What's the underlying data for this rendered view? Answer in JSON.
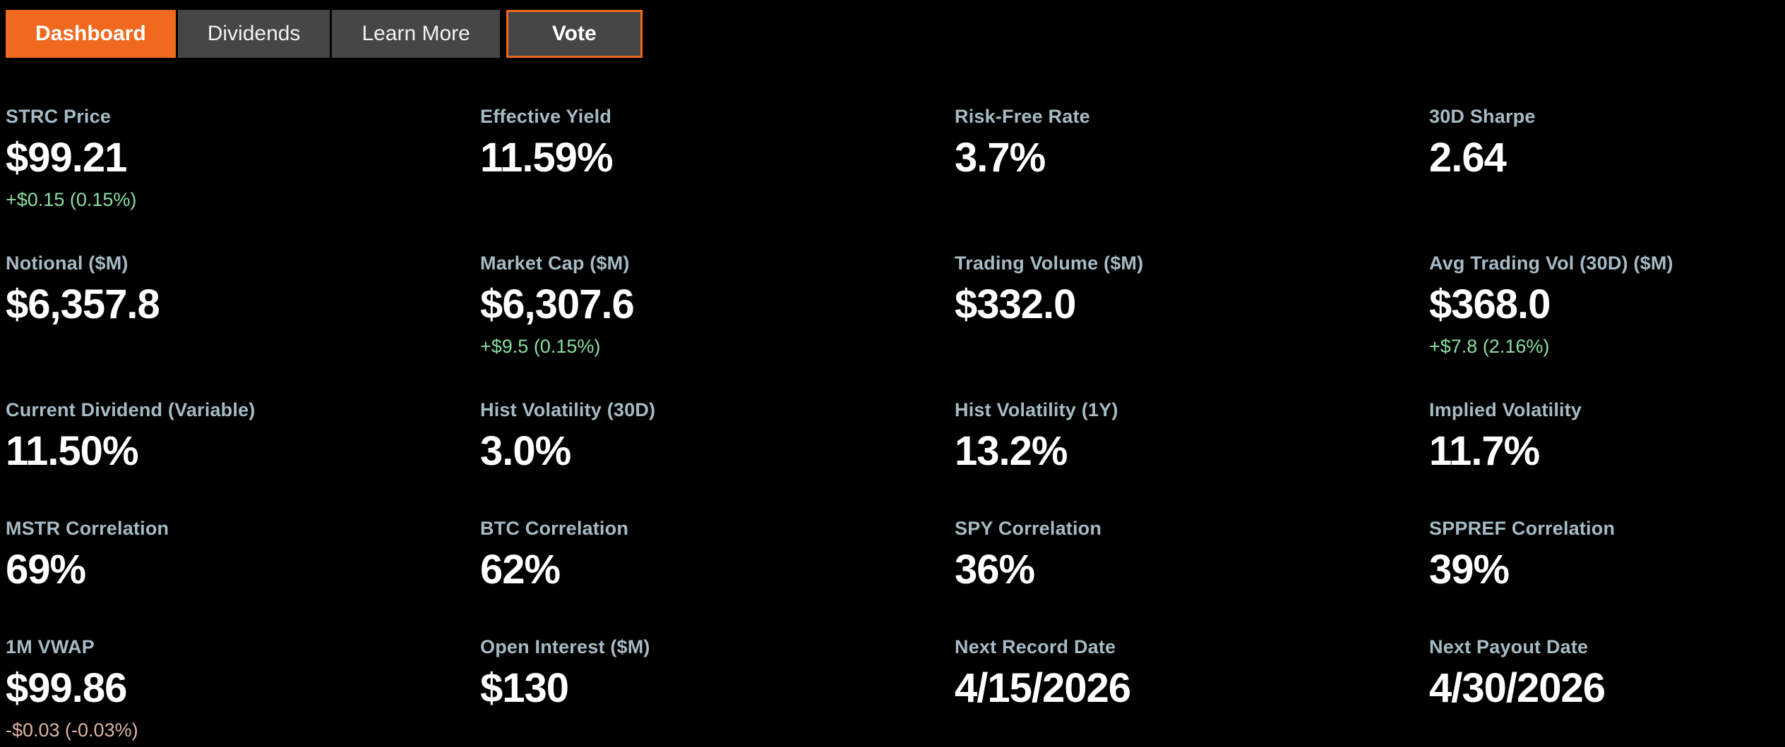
{
  "colors": {
    "accent_orange": "#f0691e",
    "button_gray": "#464646",
    "label_gray_blue": "#a6bbc5",
    "value_white": "#ffffff",
    "positive_green": "#8adfa2",
    "negative_salmon": "#dfb5a5",
    "background": "#000000"
  },
  "nav": {
    "tabs": [
      {
        "label": "Dashboard",
        "active": true,
        "outlined": false
      },
      {
        "label": "Dividends",
        "active": false,
        "outlined": false
      },
      {
        "label": "Learn More",
        "active": false,
        "outlined": false
      },
      {
        "label": "Vote",
        "active": false,
        "outlined": true
      }
    ]
  },
  "metrics": [
    {
      "label": "STRC Price",
      "value": "$99.21",
      "change": "+$0.15 (0.15%)",
      "direction": "up"
    },
    {
      "label": "Effective Yield",
      "value": "11.59%",
      "change": null,
      "direction": null
    },
    {
      "label": "Risk-Free Rate",
      "value": "3.7%",
      "change": null,
      "direction": null
    },
    {
      "label": "30D Sharpe",
      "value": "2.64",
      "change": null,
      "direction": null
    },
    {
      "label": "Notional ($M)",
      "value": "$6,357.8",
      "change": null,
      "direction": null
    },
    {
      "label": "Market Cap ($M)",
      "value": "$6,307.6",
      "change": "+$9.5 (0.15%)",
      "direction": "up"
    },
    {
      "label": "Trading Volume ($M)",
      "value": "$332.0",
      "change": null,
      "direction": null
    },
    {
      "label": "Avg Trading Vol (30D) ($M)",
      "value": "$368.0",
      "change": "+$7.8 (2.16%)",
      "direction": "up"
    },
    {
      "label": "Current Dividend (Variable)",
      "value": "11.50%",
      "change": null,
      "direction": null
    },
    {
      "label": "Hist Volatility (30D)",
      "value": "3.0%",
      "change": null,
      "direction": null
    },
    {
      "label": "Hist Volatility (1Y)",
      "value": "13.2%",
      "change": null,
      "direction": null
    },
    {
      "label": "Implied Volatility",
      "value": "11.7%",
      "change": null,
      "direction": null
    },
    {
      "label": "MSTR Correlation",
      "value": "69%",
      "change": null,
      "direction": null
    },
    {
      "label": "BTC Correlation",
      "value": "62%",
      "change": null,
      "direction": null
    },
    {
      "label": "SPY Correlation",
      "value": "36%",
      "change": null,
      "direction": null
    },
    {
      "label": "SPPREF Correlation",
      "value": "39%",
      "change": null,
      "direction": null
    },
    {
      "label": "1M VWAP",
      "value": "$99.86",
      "change": "-$0.03 (-0.03%)",
      "direction": "down"
    },
    {
      "label": "Open Interest ($M)",
      "value": "$130",
      "change": null,
      "direction": null
    },
    {
      "label": "Next Record Date",
      "value": "4/15/2026",
      "change": null,
      "direction": null
    },
    {
      "label": "Next Payout Date",
      "value": "4/30/2026",
      "change": null,
      "direction": null
    }
  ]
}
